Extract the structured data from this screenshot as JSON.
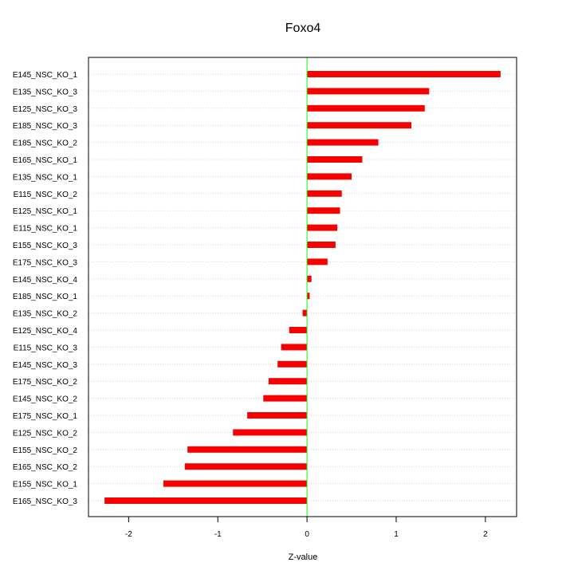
{
  "chart_data": {
    "type": "bar",
    "orientation": "horizontal",
    "title": "Foxo4",
    "xlabel": "Z-value",
    "ylabel": "",
    "xlim": [
      -2.45,
      2.35
    ],
    "x_ticks": [
      -2,
      -1,
      0,
      1,
      2
    ],
    "x_tick_labels": [
      "-2",
      "-1",
      "0",
      "1",
      "2"
    ],
    "grid": "horizontal dotted",
    "zero_line": true,
    "categories": [
      "E145_NSC_KO_1",
      "E135_NSC_KO_3",
      "E125_NSC_KO_3",
      "E185_NSC_KO_3",
      "E185_NSC_KO_2",
      "E165_NSC_KO_1",
      "E135_NSC_KO_1",
      "E115_NSC_KO_2",
      "E125_NSC_KO_1",
      "E115_NSC_KO_1",
      "E155_NSC_KO_3",
      "E175_NSC_KO_3",
      "E145_NSC_KO_4",
      "E185_NSC_KO_1",
      "E135_NSC_KO_2",
      "E125_NSC_KO_4",
      "E115_NSC_KO_3",
      "E145_NSC_KO_3",
      "E175_NSC_KO_2",
      "E145_NSC_KO_2",
      "E175_NSC_KO_1",
      "E125_NSC_KO_2",
      "E155_NSC_KO_2",
      "E165_NSC_KO_2",
      "E155_NSC_KO_1",
      "E165_NSC_KO_3"
    ],
    "values": [
      2.17,
      1.37,
      1.32,
      1.17,
      0.8,
      0.62,
      0.5,
      0.39,
      0.37,
      0.34,
      0.32,
      0.23,
      0.05,
      0.03,
      -0.05,
      -0.2,
      -0.29,
      -0.33,
      -0.43,
      -0.49,
      -0.67,
      -0.83,
      -1.34,
      -1.37,
      -1.61,
      -2.27
    ]
  },
  "colors": {
    "bar": "#ff0000",
    "bar_texture": "#b80000",
    "zero_line": "#00ff00",
    "grid": "#d3d3d3",
    "axis": "#000000"
  }
}
